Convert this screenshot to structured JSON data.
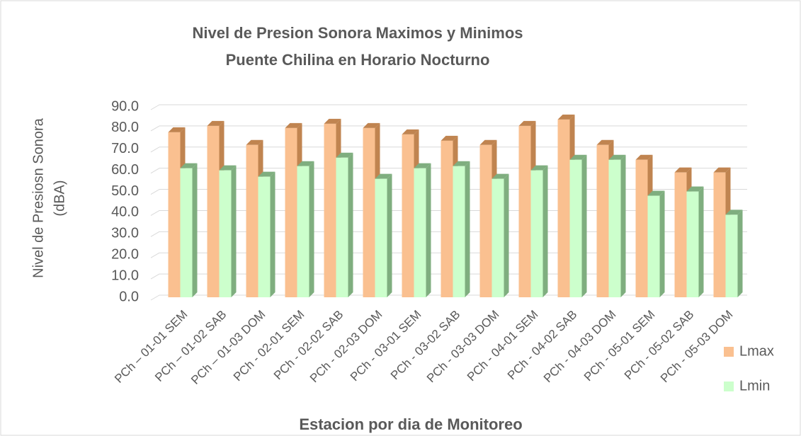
{
  "chart_data": {
    "type": "bar3d",
    "title": [
      "Nivel de Presion Sonora Maximos y Minimos",
      "Puente Chilina en Horario Nocturno"
    ],
    "y_label": [
      "Nivel de Presiosn Sonora",
      "(dBA)"
    ],
    "x_label": "Estacion por dia de Monitoreo",
    "categories": [
      "PCh – 01-01 SEM",
      "PCh – 01-02 SAB",
      "PCh – 01-03 DOM",
      "PCh - 02-01 SEM",
      "PCh - 02-02 SAB",
      "PCh - 02-03 DOM",
      "PCh - 03-01 SEM",
      "PCh - 03-02 SAB",
      "PCh - 03-03 DOM",
      "PCh - 04-01 SEM",
      "PCh - 04-02 SAB",
      "PCh - 04-03 DOM",
      "PCh - 05-01 SEM",
      "PCh - 05-02 SAB",
      "PCh - 05-03 DOM"
    ],
    "series": [
      {
        "name": "Lmax",
        "color": "#fac090",
        "side_color": "#c08450",
        "values": [
          78,
          81,
          72,
          80,
          82,
          80,
          77,
          74,
          72,
          81,
          84,
          72,
          65,
          59,
          59
        ]
      },
      {
        "name": "Lmin",
        "color": "#ccffcc",
        "side_color": "#7fae7f",
        "values": [
          61,
          60,
          57,
          62,
          66,
          56,
          61,
          62,
          56,
          60,
          65,
          65,
          48,
          50,
          39
        ]
      }
    ],
    "ylim": [
      0,
      90
    ],
    "yticks": [
      {
        "value": 0,
        "label": "0.0"
      },
      {
        "value": 10,
        "label": "10.0"
      },
      {
        "value": 20,
        "label": "20.0"
      },
      {
        "value": 30,
        "label": "30.0"
      },
      {
        "value": 40,
        "label": "40.0"
      },
      {
        "value": 50,
        "label": "50.0"
      },
      {
        "value": 60,
        "label": "60.0"
      },
      {
        "value": 70,
        "label": "70.0"
      },
      {
        "value": 80,
        "label": "80.0"
      },
      {
        "value": 90,
        "label": "90.0"
      }
    ],
    "grid": true,
    "legend": "right"
  }
}
